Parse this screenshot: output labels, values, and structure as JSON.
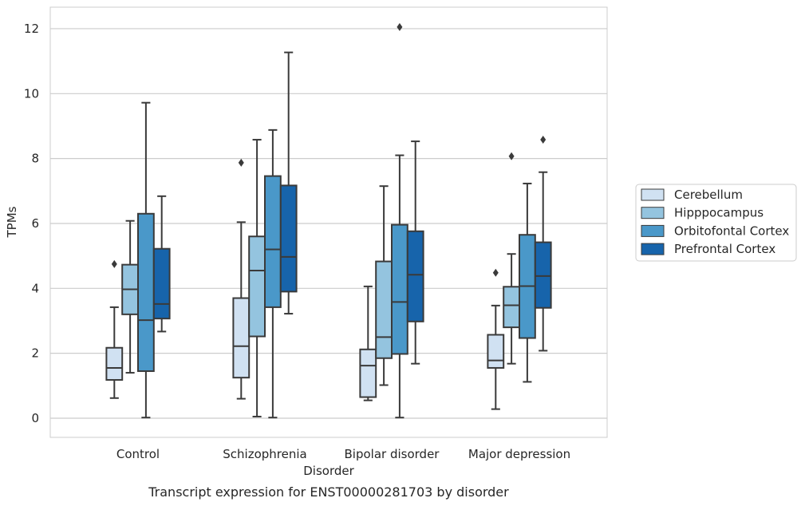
{
  "chart_data": {
    "type": "box",
    "caption": "Transcript expression for ENST00000281703 by disorder",
    "xlabel": "Disorder",
    "ylabel": "TPMs",
    "ylim": [
      -0.6,
      12.7
    ],
    "yticks": [
      0,
      2,
      4,
      6,
      8,
      10,
      12
    ],
    "grid": "horizontal",
    "legend_position": "right, outside plot",
    "categories": [
      "Control",
      "Schizophrenia",
      "Bipolar disorder",
      "Major depression"
    ],
    "series": [
      {
        "name": "Cerebellum",
        "color": "#d0e1f2",
        "boxes": [
          {
            "whisker_low": 0.62,
            "q1": 1.18,
            "median": 1.55,
            "q3": 2.17,
            "whisker_high": 3.42,
            "outliers": [
              4.75
            ]
          },
          {
            "whisker_low": 0.6,
            "q1": 1.25,
            "median": 2.22,
            "q3": 3.7,
            "whisker_high": 6.04,
            "outliers": [
              7.87
            ]
          },
          {
            "whisker_low": 0.55,
            "q1": 0.65,
            "median": 1.62,
            "q3": 2.12,
            "whisker_high": 4.06,
            "outliers": []
          },
          {
            "whisker_low": 0.28,
            "q1": 1.55,
            "median": 1.78,
            "q3": 2.57,
            "whisker_high": 3.47,
            "outliers": [
              4.48
            ]
          }
        ]
      },
      {
        "name": "Hipppocampus",
        "color": "#94c4df",
        "boxes": [
          {
            "whisker_low": 1.4,
            "q1": 3.2,
            "median": 3.97,
            "q3": 4.73,
            "whisker_high": 6.08,
            "outliers": []
          },
          {
            "whisker_low": 0.05,
            "q1": 2.52,
            "median": 4.55,
            "q3": 5.6,
            "whisker_high": 8.58,
            "outliers": []
          },
          {
            "whisker_low": 1.02,
            "q1": 1.85,
            "median": 2.5,
            "q3": 4.83,
            "whisker_high": 7.15,
            "outliers": []
          },
          {
            "whisker_low": 1.68,
            "q1": 2.8,
            "median": 3.48,
            "q3": 4.05,
            "whisker_high": 5.06,
            "outliers": [
              8.07
            ]
          }
        ]
      },
      {
        "name": "Orbitofontal Cortex",
        "color": "#4a98c9",
        "boxes": [
          {
            "whisker_low": 0.02,
            "q1": 1.45,
            "median": 3.02,
            "q3": 6.3,
            "whisker_high": 9.72,
            "outliers": []
          },
          {
            "whisker_low": 0.02,
            "q1": 3.42,
            "median": 5.2,
            "q3": 7.46,
            "whisker_high": 8.88,
            "outliers": []
          },
          {
            "whisker_low": 0.02,
            "q1": 1.98,
            "median": 3.58,
            "q3": 5.96,
            "whisker_high": 8.1,
            "outliers": [
              12.05
            ]
          },
          {
            "whisker_low": 1.12,
            "q1": 2.47,
            "median": 4.07,
            "q3": 5.65,
            "whisker_high": 7.23,
            "outliers": []
          }
        ]
      },
      {
        "name": "Prefrontal Cortex",
        "color": "#1764ab",
        "boxes": [
          {
            "whisker_low": 2.67,
            "q1": 3.07,
            "median": 3.52,
            "q3": 5.22,
            "whisker_high": 6.84,
            "outliers": []
          },
          {
            "whisker_low": 3.22,
            "q1": 3.9,
            "median": 4.97,
            "q3": 7.17,
            "whisker_high": 11.27,
            "outliers": []
          },
          {
            "whisker_low": 1.68,
            "q1": 2.98,
            "median": 4.42,
            "q3": 5.76,
            "whisker_high": 8.53,
            "outliers": []
          },
          {
            "whisker_low": 2.08,
            "q1": 3.4,
            "median": 4.38,
            "q3": 5.42,
            "whisker_high": 7.58,
            "outliers": [
              8.58
            ]
          }
        ]
      }
    ]
  },
  "colors": {
    "grid": "#cccccc",
    "frame": "#cccccc",
    "box_edge": "#3a3a3a",
    "text": "#262626"
  }
}
